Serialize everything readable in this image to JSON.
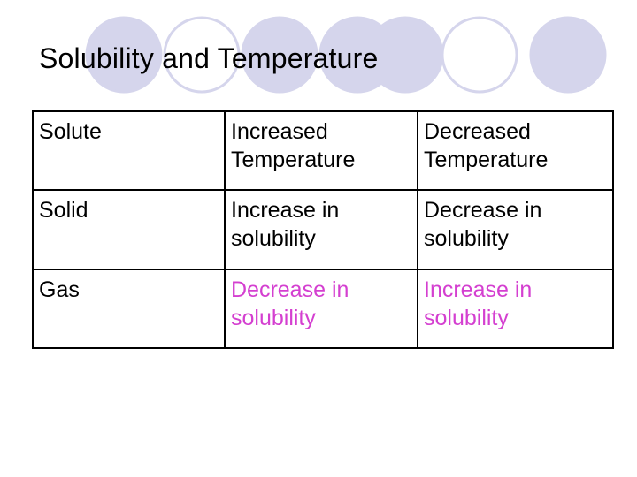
{
  "slide": {
    "title": "Solubility and Temperature",
    "accent_color": "#d43fd0",
    "decor_circle_colors": [
      "#d5d5ec",
      "#ffffff"
    ]
  },
  "table": {
    "headers": [
      "Solute",
      "Increased Temperature",
      "Decreased Temperature"
    ],
    "rows": [
      [
        "Solid",
        "Increase in solubility",
        "Decrease in solubility"
      ],
      [
        "Gas",
        "Decrease in solubility",
        "Increase in solubility"
      ]
    ]
  }
}
